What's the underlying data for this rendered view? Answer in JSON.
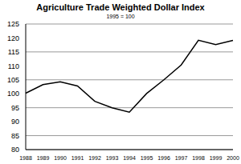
{
  "chart_data": {
    "type": "line",
    "title": "Agriculture Trade Weighted Dollar Index",
    "subtitle": "1995 = 100",
    "categories": [
      "1988",
      "1989",
      "1990",
      "1991",
      "1992",
      "1993",
      "1994",
      "1995",
      "1996",
      "1997",
      "1998",
      "1999",
      "2000"
    ],
    "values": [
      100.2,
      103.3,
      104.3,
      102.8,
      97.3,
      95.0,
      93.4,
      100.1,
      105.0,
      110.3,
      119.2,
      117.6,
      119.1
    ],
    "color": "#000000",
    "ylim": [
      80,
      125
    ],
    "yticks": [
      80,
      85,
      90,
      95,
      100,
      105,
      110,
      115,
      120,
      125
    ],
    "grid": true
  }
}
